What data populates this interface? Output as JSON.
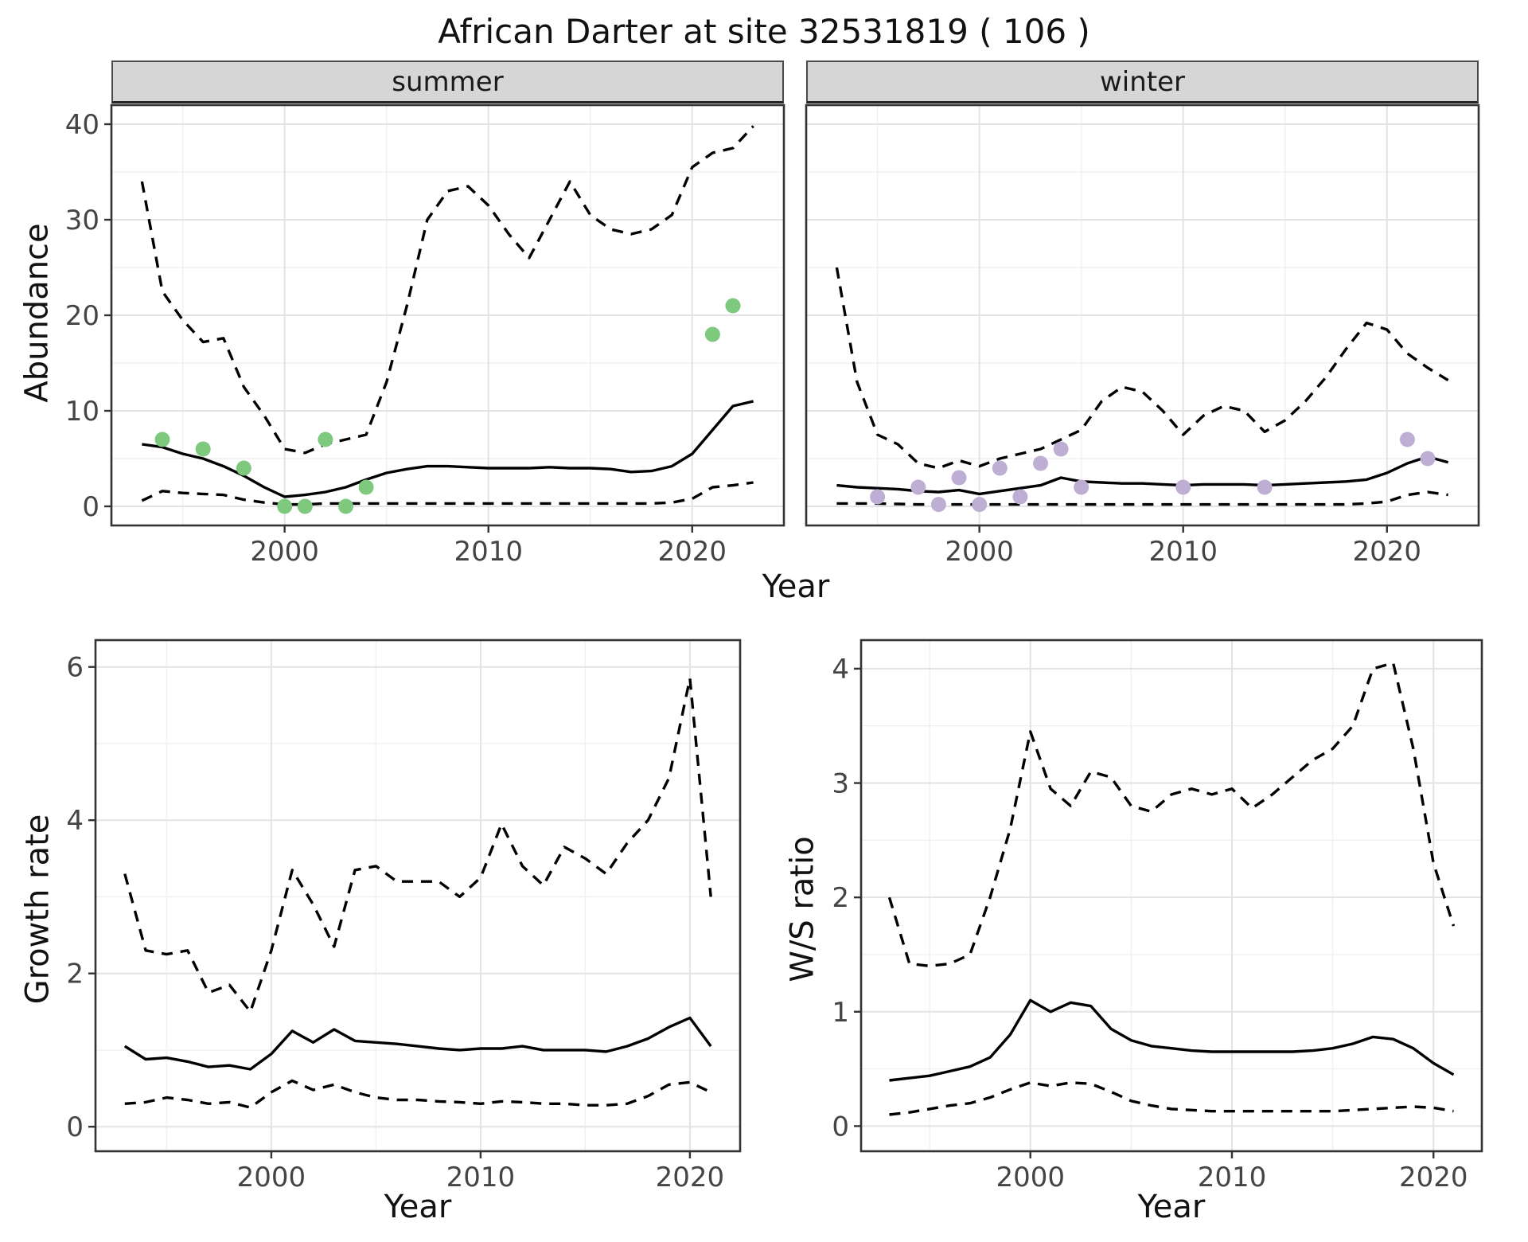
{
  "title": "African Darter at site 32531819 ( 106 )",
  "colors": {
    "line": "#000000",
    "summer_points": "#7FC97F",
    "winter_points": "#BEAED4",
    "strip_bg": "#D6D6D6",
    "grid_major": "#E3E3E3",
    "grid_minor": "#F0F0F0",
    "panel_border": "#333333",
    "tick_label": "#444444"
  },
  "chart_data": [
    {
      "id": "abundance",
      "type": "line",
      "title": "African Darter at site 32531819 ( 106 )",
      "xlabel": "Year",
      "ylabel": "Abundance",
      "xlim": [
        1991.5,
        2024.5
      ],
      "ylim": [
        -2,
        42
      ],
      "xticks": [
        2000,
        2010,
        2020
      ],
      "yticks": [
        0,
        10,
        20,
        30,
        40
      ],
      "xminor": [
        1995,
        2005,
        2015
      ],
      "yminor": [
        5,
        15,
        25,
        35
      ],
      "grid": true,
      "legend": "none",
      "facets": [
        {
          "label": "summer",
          "x": [
            1993,
            1994,
            1995,
            1996,
            1997,
            1998,
            1999,
            2000,
            2001,
            2002,
            2003,
            2004,
            2005,
            2006,
            2007,
            2008,
            2009,
            2010,
            2011,
            2012,
            2013,
            2014,
            2015,
            2016,
            2017,
            2018,
            2019,
            2020,
            2021,
            2022,
            2023
          ],
          "series": [
            {
              "name": "upper-ci",
              "style": "dashed",
              "values": [
                34,
                22.5,
                19.5,
                17.2,
                17.6,
                12.5,
                9.5,
                6.0,
                5.6,
                6.5,
                7.0,
                7.5,
                13,
                21,
                30,
                33,
                33.5,
                31.5,
                28.5,
                26,
                30,
                34,
                30.5,
                29,
                28.5,
                29,
                30.5,
                35.5,
                37,
                37.5,
                39.8
              ]
            },
            {
              "name": "lower-ci",
              "style": "dashed",
              "values": [
                0.6,
                1.6,
                1.4,
                1.3,
                1.2,
                0.7,
                0.4,
                0.2,
                0.2,
                0.3,
                0.3,
                0.3,
                0.3,
                0.3,
                0.3,
                0.3,
                0.3,
                0.3,
                0.3,
                0.3,
                0.3,
                0.3,
                0.3,
                0.3,
                0.3,
                0.3,
                0.4,
                0.8,
                2.0,
                2.2,
                2.5
              ]
            },
            {
              "name": "estimate",
              "style": "solid",
              "values": [
                6.5,
                6.2,
                5.5,
                5.0,
                4.2,
                3.2,
                2.0,
                1.0,
                1.2,
                1.5,
                2.0,
                2.8,
                3.5,
                3.9,
                4.2,
                4.2,
                4.1,
                4.0,
                4.0,
                4.0,
                4.1,
                4.0,
                4.0,
                3.9,
                3.6,
                3.7,
                4.2,
                5.5,
                8.0,
                10.5,
                11.0
              ]
            },
            {
              "name": "observed-counts",
              "type": "points",
              "color": "#7FC97F",
              "points": [
                [
                  1994,
                  7
                ],
                [
                  1996,
                  6
                ],
                [
                  1998,
                  4
                ],
                [
                  2000,
                  0
                ],
                [
                  2001,
                  0
                ],
                [
                  2002,
                  7
                ],
                [
                  2003,
                  0
                ],
                [
                  2004,
                  2
                ],
                [
                  2021,
                  18
                ],
                [
                  2022,
                  21
                ]
              ]
            }
          ]
        },
        {
          "label": "winter",
          "x": [
            1993,
            1994,
            1995,
            1996,
            1997,
            1998,
            1999,
            2000,
            2001,
            2002,
            2003,
            2004,
            2005,
            2006,
            2007,
            2008,
            2009,
            2010,
            2011,
            2012,
            2013,
            2014,
            2015,
            2016,
            2017,
            2018,
            2019,
            2020,
            2021,
            2022,
            2023
          ],
          "series": [
            {
              "name": "upper-ci",
              "style": "dashed",
              "values": [
                25,
                13,
                7.5,
                6.5,
                4.5,
                4.0,
                4.8,
                4.2,
                5.0,
                5.5,
                6.0,
                7.0,
                8.0,
                11.0,
                12.5,
                12.0,
                10.0,
                7.5,
                9.5,
                10.5,
                10.0,
                7.8,
                9.0,
                11.0,
                13.5,
                16.5,
                19.2,
                18.5,
                16.0,
                14.5,
                13.2
              ]
            },
            {
              "name": "lower-ci",
              "style": "dashed",
              "values": [
                0.3,
                0.3,
                0.3,
                0.25,
                0.2,
                0.2,
                0.2,
                0.2,
                0.2,
                0.2,
                0.2,
                0.2,
                0.2,
                0.2,
                0.2,
                0.2,
                0.2,
                0.2,
                0.2,
                0.2,
                0.2,
                0.2,
                0.2,
                0.2,
                0.2,
                0.2,
                0.3,
                0.5,
                1.2,
                1.5,
                1.2
              ]
            },
            {
              "name": "estimate",
              "style": "solid",
              "values": [
                2.2,
                2.0,
                1.9,
                1.8,
                1.6,
                1.5,
                1.7,
                1.3,
                1.6,
                1.9,
                2.2,
                3.0,
                2.6,
                2.5,
                2.4,
                2.4,
                2.3,
                2.2,
                2.3,
                2.3,
                2.3,
                2.2,
                2.3,
                2.4,
                2.5,
                2.6,
                2.8,
                3.5,
                4.5,
                5.2,
                4.6
              ]
            },
            {
              "name": "observed-counts",
              "type": "points",
              "color": "#BEAED4",
              "points": [
                [
                  1995,
                  1
                ],
                [
                  1997,
                  2
                ],
                [
                  1998,
                  0.2
                ],
                [
                  1999,
                  3
                ],
                [
                  2000,
                  0.2
                ],
                [
                  2001,
                  4
                ],
                [
                  2002,
                  1
                ],
                [
                  2003,
                  4.5
                ],
                [
                  2004,
                  6
                ],
                [
                  2005,
                  2
                ],
                [
                  2010,
                  2
                ],
                [
                  2014,
                  2
                ],
                [
                  2021,
                  7
                ],
                [
                  2022,
                  5
                ]
              ]
            }
          ]
        }
      ]
    },
    {
      "id": "growth-rate",
      "type": "line",
      "xlabel": "Year",
      "ylabel": "Growth rate",
      "xlim": [
        1991.6,
        2022.4
      ],
      "ylim": [
        -0.32,
        6.35
      ],
      "xticks": [
        2000,
        2010,
        2020
      ],
      "yticks": [
        0,
        2,
        4,
        6
      ],
      "xminor": [
        1995,
        2005,
        2015
      ],
      "yminor": [
        1,
        3,
        5
      ],
      "grid": true,
      "legend": "none",
      "x": [
        1993,
        1994,
        1995,
        1996,
        1997,
        1998,
        1999,
        2000,
        2001,
        2002,
        2003,
        2004,
        2005,
        2006,
        2007,
        2008,
        2009,
        2010,
        2011,
        2012,
        2013,
        2014,
        2015,
        2016,
        2017,
        2018,
        2019,
        2020,
        2021
      ],
      "series": [
        {
          "name": "upper-ci",
          "style": "dashed",
          "values": [
            3.3,
            2.3,
            2.25,
            2.3,
            1.75,
            1.85,
            1.5,
            2.3,
            3.35,
            2.9,
            2.35,
            3.35,
            3.4,
            3.2,
            3.2,
            3.2,
            3.0,
            3.25,
            3.95,
            3.4,
            3.15,
            3.65,
            3.5,
            3.3,
            3.7,
            4.0,
            4.55,
            5.85,
            3.0
          ]
        },
        {
          "name": "lower-ci",
          "style": "dashed",
          "values": [
            0.3,
            0.32,
            0.38,
            0.35,
            0.3,
            0.32,
            0.25,
            0.45,
            0.6,
            0.48,
            0.55,
            0.45,
            0.38,
            0.35,
            0.35,
            0.33,
            0.32,
            0.3,
            0.33,
            0.32,
            0.3,
            0.3,
            0.28,
            0.28,
            0.3,
            0.4,
            0.55,
            0.58,
            0.45
          ]
        },
        {
          "name": "estimate",
          "style": "solid",
          "values": [
            1.05,
            0.88,
            0.9,
            0.85,
            0.78,
            0.8,
            0.75,
            0.95,
            1.25,
            1.1,
            1.27,
            1.12,
            1.1,
            1.08,
            1.05,
            1.02,
            1.0,
            1.02,
            1.02,
            1.05,
            1.0,
            1.0,
            1.0,
            0.98,
            1.05,
            1.15,
            1.3,
            1.42,
            1.05
          ]
        }
      ]
    },
    {
      "id": "ws-ratio",
      "type": "line",
      "xlabel": "Year",
      "ylabel": "W/S ratio",
      "xlim": [
        1991.6,
        2022.4
      ],
      "ylim": [
        -0.22,
        4.25
      ],
      "xticks": [
        2000,
        2010,
        2020
      ],
      "yticks": [
        0,
        1,
        2,
        3,
        4
      ],
      "xminor": [
        1995,
        2005,
        2015
      ],
      "yminor": [
        0.5,
        1.5,
        2.5,
        3.5
      ],
      "grid": true,
      "legend": "none",
      "x": [
        1993,
        1994,
        1995,
        1996,
        1997,
        1998,
        1999,
        2000,
        2001,
        2002,
        2003,
        2004,
        2005,
        2006,
        2007,
        2008,
        2009,
        2010,
        2011,
        2012,
        2013,
        2014,
        2015,
        2016,
        2017,
        2018,
        2019,
        2020,
        2021
      ],
      "series": [
        {
          "name": "upper-ci",
          "style": "dashed",
          "values": [
            2.0,
            1.42,
            1.4,
            1.42,
            1.5,
            2.0,
            2.6,
            3.45,
            2.95,
            2.8,
            3.1,
            3.05,
            2.8,
            2.75,
            2.9,
            2.95,
            2.9,
            2.95,
            2.78,
            2.9,
            3.05,
            3.2,
            3.3,
            3.5,
            4.0,
            4.05,
            3.3,
            2.3,
            1.75
          ]
        },
        {
          "name": "lower-ci",
          "style": "dashed",
          "values": [
            0.1,
            0.12,
            0.15,
            0.18,
            0.2,
            0.25,
            0.32,
            0.38,
            0.35,
            0.38,
            0.37,
            0.3,
            0.22,
            0.18,
            0.15,
            0.14,
            0.13,
            0.13,
            0.13,
            0.13,
            0.13,
            0.13,
            0.13,
            0.14,
            0.15,
            0.16,
            0.17,
            0.16,
            0.13
          ]
        },
        {
          "name": "estimate",
          "style": "solid",
          "values": [
            0.4,
            0.42,
            0.44,
            0.48,
            0.52,
            0.6,
            0.8,
            1.1,
            1.0,
            1.08,
            1.05,
            0.85,
            0.75,
            0.7,
            0.68,
            0.66,
            0.65,
            0.65,
            0.65,
            0.65,
            0.65,
            0.66,
            0.68,
            0.72,
            0.78,
            0.76,
            0.68,
            0.55,
            0.45
          ]
        }
      ]
    }
  ]
}
